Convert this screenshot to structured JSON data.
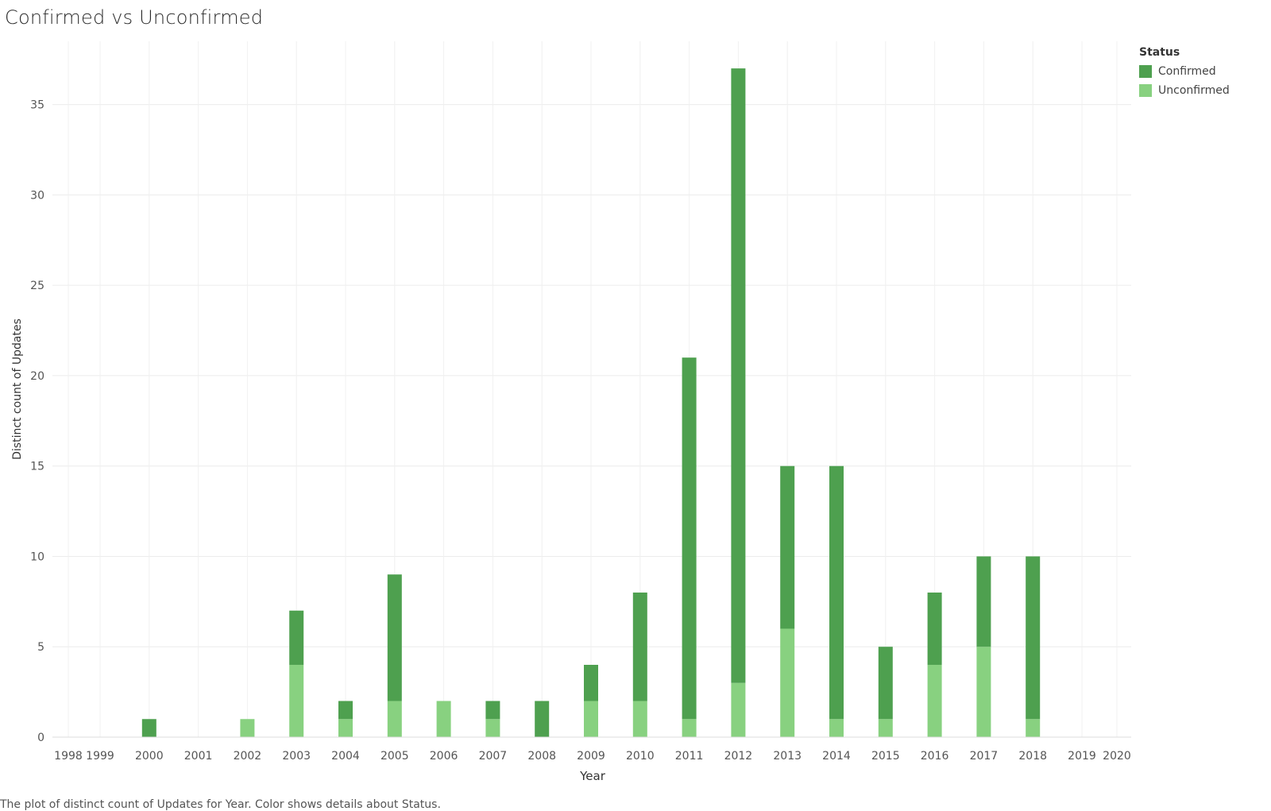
{
  "title": "Confirmed vs Unconfirmed",
  "caption": "The plot of distinct count of Updates for Year.  Color shows details about Status.",
  "legend": {
    "title": "Status",
    "items": [
      {
        "label": "Confirmed",
        "color": "#4ea04f"
      },
      {
        "label": "Unconfirmed",
        "color": "#88d180"
      }
    ]
  },
  "chart_data": {
    "type": "bar",
    "stacked": true,
    "xlabel": "Year",
    "ylabel": "Distinct count of Updates",
    "ylim": [
      0,
      38.5
    ],
    "yticks": [
      0,
      5,
      10,
      15,
      20,
      25,
      30,
      35
    ],
    "grid": true,
    "legend_position": "top-right",
    "categories": [
      "1998",
      "1999",
      "2000",
      "2001",
      "2002",
      "2003",
      "2004",
      "2005",
      "2006",
      "2007",
      "2008",
      "2009",
      "2010",
      "2011",
      "2012",
      "2013",
      "2014",
      "2015",
      "2016",
      "2017",
      "2018",
      "2019",
      "2020"
    ],
    "series": [
      {
        "name": "Unconfirmed",
        "color": "#88d180",
        "values": [
          0,
          0,
          0,
          0,
          1,
          4,
          1,
          2,
          2,
          1,
          0,
          2,
          2,
          1,
          3,
          6,
          1,
          1,
          4,
          5,
          1,
          0,
          0
        ]
      },
      {
        "name": "Confirmed",
        "color": "#4ea04f",
        "values": [
          0,
          0,
          1,
          0,
          0,
          3,
          1,
          7,
          0,
          1,
          2,
          2,
          6,
          20,
          34,
          9,
          14,
          4,
          4,
          5,
          9,
          0,
          0
        ]
      }
    ]
  }
}
